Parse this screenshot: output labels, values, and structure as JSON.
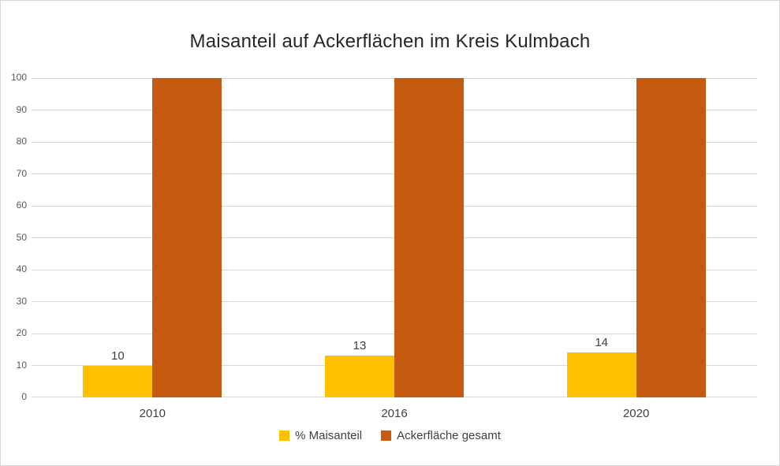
{
  "chart_data": {
    "type": "bar",
    "title": "Maisanteil auf Ackerflächen im Kreis Kulmbach",
    "categories": [
      "2010",
      "2016",
      "2020"
    ],
    "series": [
      {
        "name": "% Maisanteil",
        "color": "#FFC000",
        "values": [
          10,
          13,
          14
        ],
        "data_labels": [
          "10",
          "13",
          "14"
        ]
      },
      {
        "name": "Ackerfläche gesamt",
        "color": "#C55A11",
        "values": [
          100,
          100,
          100
        ],
        "data_labels": []
      }
    ],
    "xlabel": "",
    "ylabel": "",
    "ylim": [
      0,
      100
    ],
    "yticks": [
      0,
      10,
      20,
      30,
      40,
      50,
      60,
      70,
      80,
      90,
      100
    ],
    "grid": true,
    "legend_position": "bottom"
  },
  "colors": {
    "background": "#FFFFFF",
    "border": "#D6D6D6",
    "gridline": "#D9D9D9",
    "axis_line": "#D9D9D9",
    "title_text": "#262626",
    "ytick_text": "#595959",
    "xtick_text": "#404040",
    "data_label_text": "#404040",
    "legend_text": "#404040",
    "series_maisanteil": "#FFC000",
    "series_ackerflaeche": "#C55A11"
  }
}
